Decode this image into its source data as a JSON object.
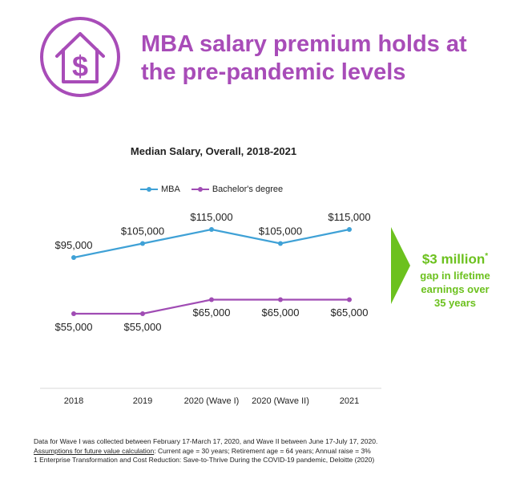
{
  "header": {
    "icon": "house-dollar-icon",
    "title": "MBA salary premium holds at the pre-pandemic levels"
  },
  "colors": {
    "accent": "#a84cb8",
    "mba": "#3fa1d6",
    "bachelor": "#a04cb4",
    "highlight": "#6cc11e"
  },
  "chart_data": {
    "type": "line",
    "title": "Median Salary, Overall, 2018-2021",
    "categories": [
      "2018",
      "2019",
      "2020 (Wave I)",
      "2020 (Wave II)",
      "2021"
    ],
    "series": [
      {
        "name": "MBA",
        "values": [
          95000,
          105000,
          115000,
          105000,
          115000
        ],
        "labels": [
          "$95,000",
          "$105,000",
          "$115,000",
          "$105,000",
          "$115,000"
        ]
      },
      {
        "name": "Bachelor's degree",
        "values": [
          55000,
          55000,
          65000,
          65000,
          65000
        ],
        "labels": [
          "$55,000",
          "$55,000",
          "$65,000",
          "$65,000",
          "$65,000"
        ]
      }
    ],
    "legend_position": "top",
    "grid": false
  },
  "callout": {
    "headline": "$3 million",
    "asterisk": "*",
    "line1": "gap in lifetime",
    "line2": "earnings over",
    "line3": "35 years"
  },
  "footnotes": {
    "line1": "Data for Wave I was collected between February 17-March 17, 2020, and Wave II  between June 17-July 17, 2020.",
    "line2_underlined": "Assumptions for future value calculation",
    "line2_rest": ": Current age = 30 years; Retirement age = 64 years; Annual raise = 3%",
    "line3": "1 Enterprise Transformation and Cost Reduction: Save-to-Thrive During the COVID-19 pandemic, Deloitte (2020)"
  }
}
